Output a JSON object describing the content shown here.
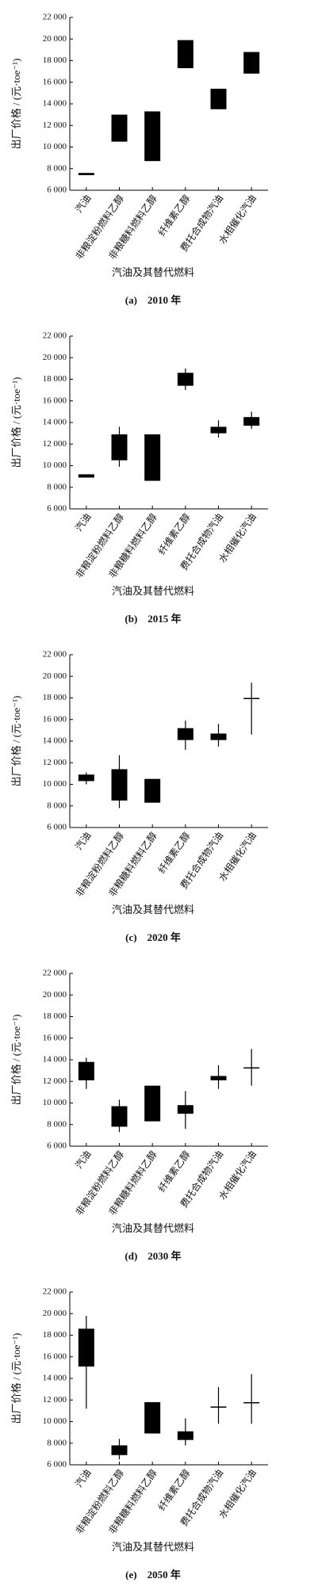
{
  "chart_data": [
    {
      "type": "range",
      "title": "(a)　2010 年",
      "xlabel": "汽油及其替代燃料",
      "ylabel": "出厂价格 / (元·toe⁻¹)",
      "categories": [
        "汽油",
        "非粮淀粉燃料乙醇",
        "非粮糖料燃料乙醇",
        "纤维素乙醇",
        "费托合成物汽油",
        "水相催化汽油"
      ],
      "box_low": [
        7400,
        10500,
        8700,
        17300,
        13500,
        16800
      ],
      "box_high": [
        7600,
        13000,
        13300,
        19900,
        15400,
        18800
      ],
      "whisker_low": [
        null,
        null,
        null,
        null,
        null,
        null
      ],
      "whisker_high": [
        null,
        null,
        null,
        null,
        null,
        null
      ],
      "color": "#000000",
      "ylim": [
        6000,
        22000
      ],
      "yticks": [
        {
          "value": 6000,
          "label": "6 000"
        },
        {
          "value": 8000,
          "label": "8 000"
        },
        {
          "value": 10000,
          "label": "10 000"
        },
        {
          "value": 12000,
          "label": "12 000"
        },
        {
          "value": 14000,
          "label": "14 000"
        },
        {
          "value": 16000,
          "label": "16 000"
        },
        {
          "value": 18000,
          "label": "18 000"
        },
        {
          "value": 20000,
          "label": "20 000"
        },
        {
          "value": 22000,
          "label": "22 000"
        }
      ]
    },
    {
      "type": "range",
      "title": "(b)　2015 年",
      "xlabel": "汽油及其替代燃料",
      "ylabel": "出厂价格 / (元·toe⁻¹)",
      "categories": [
        "汽油",
        "非粮淀粉燃料乙醇",
        "非粮糖料燃料乙醇",
        "纤维素乙醇",
        "费托合成物汽油",
        "水相催化汽油"
      ],
      "box_low": [
        8900,
        10500,
        8600,
        17400,
        13000,
        13700
      ],
      "box_high": [
        9200,
        12900,
        12900,
        18600,
        13600,
        14500
      ],
      "whisker_low": [
        null,
        9900,
        null,
        17000,
        12600,
        13400
      ],
      "whisker_high": [
        null,
        13600,
        null,
        19000,
        14200,
        15000
      ],
      "color": "#000000",
      "ylim": [
        6000,
        22000
      ],
      "yticks": [
        {
          "value": 6000,
          "label": "6 000"
        },
        {
          "value": 8000,
          "label": "8 000"
        },
        {
          "value": 10000,
          "label": "10 000"
        },
        {
          "value": 12000,
          "label": "12 000"
        },
        {
          "value": 14000,
          "label": "14 000"
        },
        {
          "value": 16000,
          "label": "16 000"
        },
        {
          "value": 18000,
          "label": "18 000"
        },
        {
          "value": 20000,
          "label": "20 000"
        },
        {
          "value": 22000,
          "label": "22 000"
        }
      ]
    },
    {
      "type": "range",
      "title": "(c)　2020 年",
      "xlabel": "汽油及其替代燃料",
      "ylabel": "出厂价格 / (元·toe⁻¹)",
      "categories": [
        "汽油",
        "非粮淀粉燃料乙醇",
        "非粮糖料燃料乙醇",
        "纤维素乙醇",
        "费托合成物汽油",
        "水相催化汽油"
      ],
      "box_low": [
        10300,
        8500,
        8300,
        14100,
        14100,
        17900
      ],
      "box_high": [
        10900,
        11400,
        10500,
        15200,
        14700,
        18000
      ],
      "whisker_low": [
        10000,
        7800,
        null,
        13200,
        13500,
        14600
      ],
      "whisker_high": [
        11100,
        12700,
        null,
        15900,
        15600,
        19400
      ],
      "color": "#000000",
      "ylim": [
        6000,
        22000
      ],
      "yticks": [
        {
          "value": 6000,
          "label": "6 000"
        },
        {
          "value": 8000,
          "label": "8 000"
        },
        {
          "value": 10000,
          "label": "10 000"
        },
        {
          "value": 12000,
          "label": "12 000"
        },
        {
          "value": 14000,
          "label": "14 000"
        },
        {
          "value": 16000,
          "label": "16 000"
        },
        {
          "value": 18000,
          "label": "18 000"
        },
        {
          "value": 20000,
          "label": "20 000"
        },
        {
          "value": 22000,
          "label": "22 000"
        }
      ]
    },
    {
      "type": "range",
      "title": "(d)　2030 年",
      "xlabel": "汽油及其替代燃料",
      "ylabel": "出厂价格 / (元·toe⁻¹)",
      "categories": [
        "汽油",
        "非粮淀粉燃料乙醇",
        "非粮糖料燃料乙醇",
        "纤维素乙醇",
        "费托合成物汽油",
        "水相催化汽油"
      ],
      "box_low": [
        12100,
        7800,
        8300,
        9000,
        12100,
        13200
      ],
      "box_high": [
        13800,
        9700,
        11600,
        9800,
        12500,
        13300
      ],
      "whisker_low": [
        11300,
        7300,
        null,
        7600,
        11300,
        11600
      ],
      "whisker_high": [
        14200,
        10300,
        null,
        11100,
        13500,
        15000
      ],
      "color": "#000000",
      "ylim": [
        6000,
        22000
      ],
      "yticks": [
        {
          "value": 6000,
          "label": "6 000"
        },
        {
          "value": 8000,
          "label": "8 000"
        },
        {
          "value": 10000,
          "label": "10 000"
        },
        {
          "value": 12000,
          "label": "12 000"
        },
        {
          "value": 14000,
          "label": "14 000"
        },
        {
          "value": 16000,
          "label": "16 000"
        },
        {
          "value": 18000,
          "label": "18 000"
        },
        {
          "value": 20000,
          "label": "20 000"
        },
        {
          "value": 22000,
          "label": "22 000"
        }
      ]
    },
    {
      "type": "range",
      "title": "(e)　2050 年",
      "xlabel": "汽油及其替代燃料",
      "ylabel": "出厂价格 / (元·toe⁻¹)",
      "categories": [
        "汽油",
        "非粮淀粉燃料乙醇",
        "非粮糖料燃料乙醇",
        "纤维素乙醇",
        "费托合成物汽油",
        "水相催化汽油"
      ],
      "box_low": [
        15100,
        6900,
        8900,
        8300,
        11300,
        11700
      ],
      "box_high": [
        18600,
        7800,
        11800,
        9100,
        11400,
        11800
      ],
      "whisker_low": [
        11200,
        6500,
        null,
        7800,
        9800,
        9800
      ],
      "whisker_high": [
        19800,
        8400,
        null,
        10300,
        13200,
        14400
      ],
      "color": "#000000",
      "ylim": [
        6000,
        22000
      ],
      "yticks": [
        {
          "value": 6000,
          "label": "6 000"
        },
        {
          "value": 8000,
          "label": "8 000"
        },
        {
          "value": 10000,
          "label": "10 000"
        },
        {
          "value": 12000,
          "label": "12 000"
        },
        {
          "value": 14000,
          "label": "14 000"
        },
        {
          "value": 16000,
          "label": "16 000"
        },
        {
          "value": 18000,
          "label": "18 000"
        },
        {
          "value": 20000,
          "label": "20 000"
        },
        {
          "value": 22000,
          "label": "22 000"
        }
      ]
    }
  ]
}
